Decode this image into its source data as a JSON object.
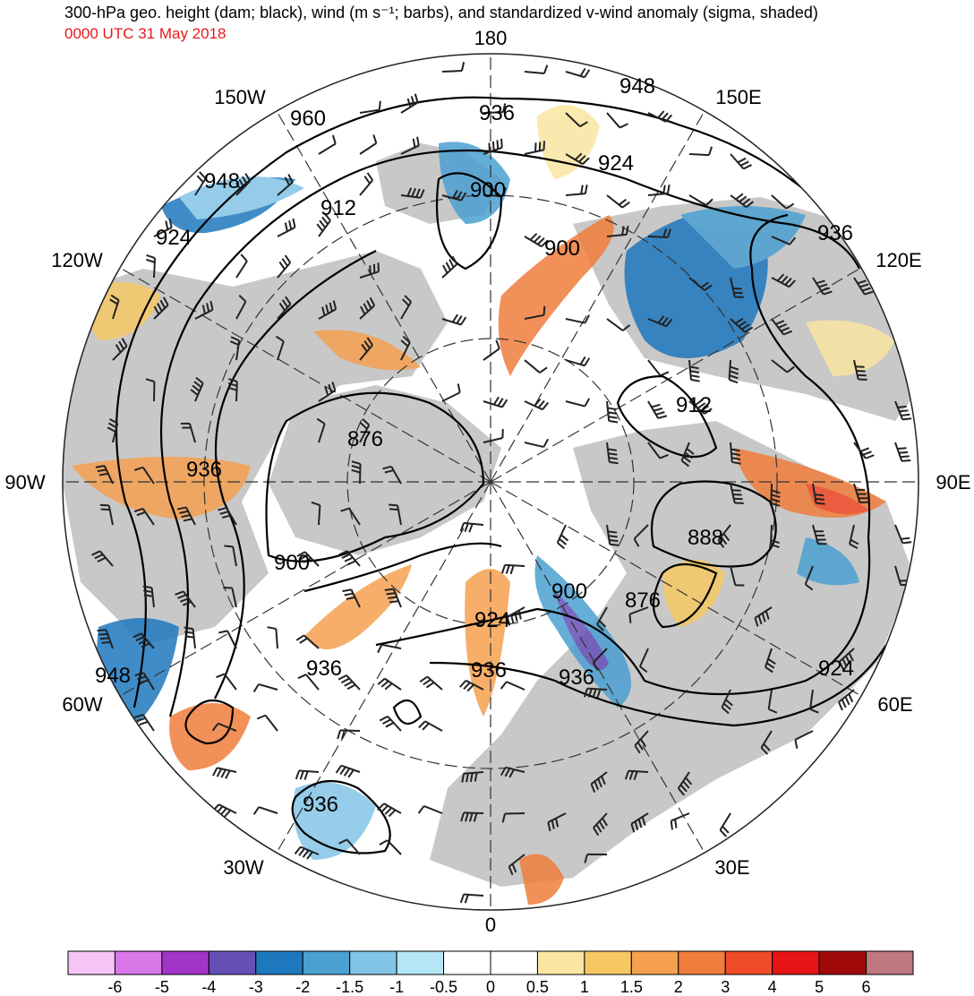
{
  "header": {
    "title": "300-hPa geo. height (dam; black), wind (m s⁻¹; barbs), and standardized v-wind anomaly (sigma, shaded)",
    "datetime": "0000 UTC 31 May 2018",
    "datetime_color": "#e41a1c"
  },
  "map": {
    "projection": "north polar stereographic",
    "longitude_labels": [
      {
        "text": "180",
        "lon": 180
      },
      {
        "text": "150E",
        "lon": 150
      },
      {
        "text": "120E",
        "lon": 120
      },
      {
        "text": "90E",
        "lon": 90
      },
      {
        "text": "60E",
        "lon": 60
      },
      {
        "text": "30E",
        "lon": 30
      },
      {
        "text": "0",
        "lon": 0
      },
      {
        "text": "30W",
        "lon": -30
      },
      {
        "text": "60W",
        "lon": -60
      },
      {
        "text": "90W",
        "lon": -90
      },
      {
        "text": "120W",
        "lon": -120
      },
      {
        "text": "150W",
        "lon": -150
      }
    ],
    "contour_labels_dam": [
      "948",
      "936",
      "960",
      "948",
      "924",
      "912",
      "900",
      "900",
      "924",
      "936",
      "876",
      "936",
      "912",
      "888",
      "900",
      "876",
      "900",
      "924",
      "936",
      "936",
      "948",
      "924",
      "936",
      "936"
    ],
    "colors": {
      "land": "#c8c8c8",
      "contour": "#000000"
    }
  },
  "colorbar": {
    "ticks": [
      "-6",
      "-5",
      "-4",
      "-3",
      "-2",
      "-1.5",
      "-1",
      "-0.5",
      "0",
      "0.5",
      "1",
      "1.5",
      "2",
      "3",
      "4",
      "5",
      "6"
    ],
    "colors": [
      "#f5c6f5",
      "#d878e8",
      "#a334c8",
      "#6650b8",
      "#1e78be",
      "#4ba0d2",
      "#82c4e6",
      "#b4e6f5",
      "#ffffff",
      "#ffffff",
      "#fae6a0",
      "#f5c864",
      "#f5a050",
      "#f07d3c",
      "#f04b28",
      "#e61414",
      "#a00a0a",
      "#c07880"
    ]
  }
}
